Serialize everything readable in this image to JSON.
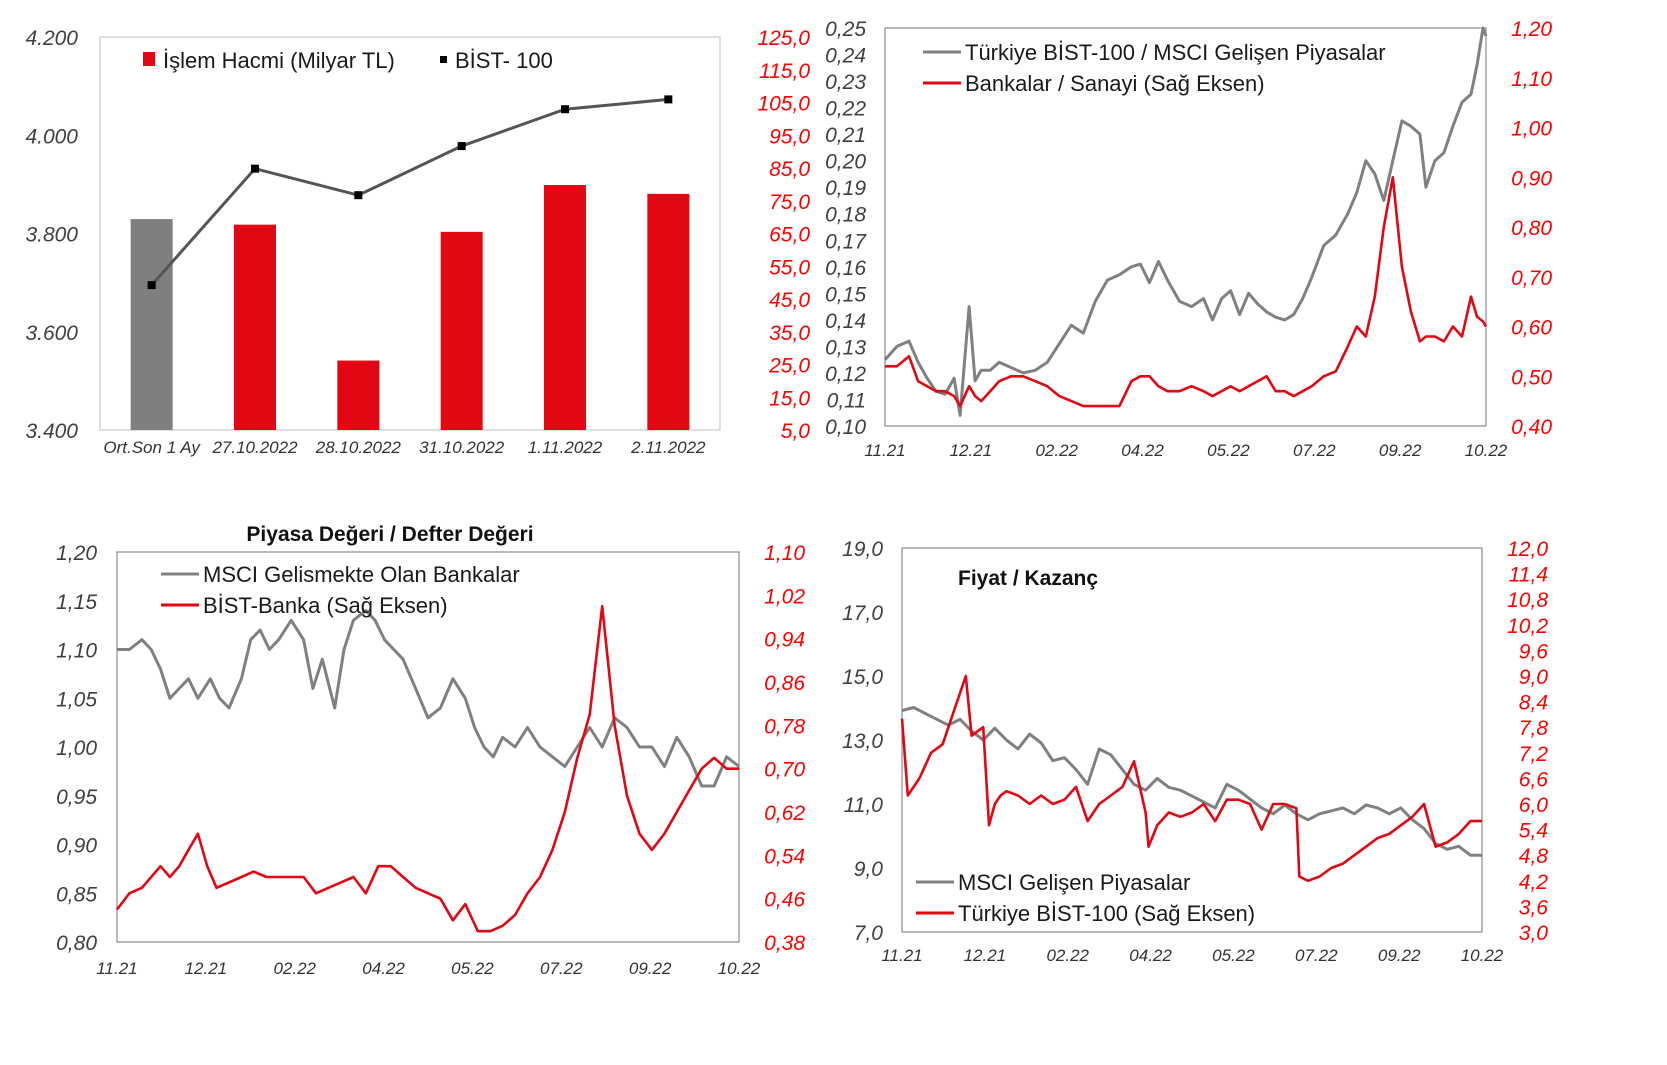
{
  "colors": {
    "red": "#e30613",
    "gray": "#6e6e6e",
    "bar_gray": "#7f7f7f",
    "black": "#111111",
    "tick_red": "#ff0000"
  },
  "chart_data": [
    {
      "id": "c1",
      "type": "bar",
      "title": "",
      "categories": [
        "Ort.Son 1 Ay",
        "27.10.2022",
        "28.10.2022",
        "31.10.2022",
        "1.11.2022",
        "2.11.2022"
      ],
      "y_left": {
        "ticks": [
          "4.200",
          "4.000",
          "3.800",
          "3.600",
          "3.400"
        ],
        "ylim": [
          3400,
          4200
        ]
      },
      "y_right": {
        "ticks": [
          "125,0",
          "115,0",
          "105,0",
          "95,0",
          "85,0",
          "75,0",
          "65,0",
          "55,0",
          "45,0",
          "35,0",
          "25,0",
          "15,0",
          "5,0"
        ],
        "ylim": [
          5,
          125
        ]
      },
      "series": [
        {
          "name": "İşlem Hacmi (Milyar TL)",
          "type": "bar",
          "axis": "right",
          "values": [
            69.4,
            67.7,
            26.2,
            65.5,
            79.8,
            77.1
          ],
          "colors": [
            "#7f7f7f",
            "#e30613",
            "#e30613",
            "#e30613",
            "#e30613",
            "#e30613"
          ]
        },
        {
          "name": "BİST- 100",
          "type": "line",
          "axis": "left",
          "values": [
            3695,
            3932,
            3878,
            3978,
            4053,
            4073
          ]
        }
      ],
      "legend": "top"
    },
    {
      "id": "c2",
      "type": "line",
      "title": "",
      "x_ticks": [
        "11.21",
        "12.21",
        "02.22",
        "04.22",
        "05.22",
        "07.22",
        "09.22",
        "10.22"
      ],
      "y_left": {
        "ticks": [
          "0,25",
          "0,24",
          "0,23",
          "0,22",
          "0,21",
          "0,20",
          "0,19",
          "0,18",
          "0,17",
          "0,16",
          "0,15",
          "0,14",
          "0,13",
          "0,12",
          "0,11",
          "0,10"
        ],
        "ylim": [
          0.1,
          0.25
        ]
      },
      "y_right": {
        "ticks": [
          "1,20",
          "1,10",
          "1,00",
          "0,90",
          "0,80",
          "0,70",
          "0,60",
          "0,50",
          "0,40"
        ],
        "ylim": [
          0.4,
          1.2
        ]
      },
      "series": [
        {
          "name": "Türkiye BİST-100 / MSCI Gelişen Piyasalar",
          "axis": "left",
          "color": "#808080",
          "x": [
            0,
            0.02,
            0.04,
            0.055,
            0.07,
            0.085,
            0.1,
            0.115,
            0.125,
            0.14,
            0.15,
            0.16,
            0.175,
            0.19,
            0.21,
            0.23,
            0.25,
            0.27,
            0.29,
            0.31,
            0.33,
            0.35,
            0.37,
            0.39,
            0.41,
            0.425,
            0.44,
            0.455,
            0.47,
            0.49,
            0.51,
            0.53,
            0.545,
            0.56,
            0.575,
            0.59,
            0.605,
            0.62,
            0.635,
            0.65,
            0.665,
            0.68,
            0.695,
            0.71,
            0.73,
            0.75,
            0.77,
            0.785,
            0.8,
            0.815,
            0.83,
            0.845,
            0.86,
            0.875,
            0.89,
            0.9,
            0.915,
            0.93,
            0.945,
            0.96,
            0.975,
            0.985,
            0.995,
            1.0
          ],
          "y": [
            0.125,
            0.13,
            0.132,
            0.124,
            0.118,
            0.113,
            0.112,
            0.118,
            0.104,
            0.145,
            0.117,
            0.121,
            0.121,
            0.124,
            0.122,
            0.12,
            0.121,
            0.124,
            0.131,
            0.138,
            0.135,
            0.147,
            0.155,
            0.157,
            0.16,
            0.161,
            0.154,
            0.162,
            0.155,
            0.147,
            0.145,
            0.148,
            0.14,
            0.148,
            0.151,
            0.142,
            0.15,
            0.146,
            0.143,
            0.141,
            0.14,
            0.142,
            0.148,
            0.156,
            0.168,
            0.172,
            0.18,
            0.188,
            0.2,
            0.195,
            0.185,
            0.2,
            0.215,
            0.213,
            0.21,
            0.19,
            0.2,
            0.203,
            0.213,
            0.222,
            0.225,
            0.236,
            0.255,
            0.247
          ]
        },
        {
          "name": "Bankalar / Sanayi (Sağ Eksen)",
          "axis": "right",
          "color": "#e30613",
          "x": [
            0,
            0.02,
            0.04,
            0.055,
            0.07,
            0.085,
            0.1,
            0.115,
            0.125,
            0.14,
            0.15,
            0.16,
            0.175,
            0.19,
            0.21,
            0.23,
            0.25,
            0.27,
            0.29,
            0.31,
            0.33,
            0.35,
            0.37,
            0.39,
            0.41,
            0.425,
            0.44,
            0.455,
            0.47,
            0.49,
            0.51,
            0.53,
            0.545,
            0.56,
            0.575,
            0.59,
            0.605,
            0.62,
            0.635,
            0.65,
            0.665,
            0.68,
            0.695,
            0.71,
            0.73,
            0.75,
            0.77,
            0.785,
            0.8,
            0.815,
            0.83,
            0.845,
            0.86,
            0.875,
            0.89,
            0.9,
            0.915,
            0.93,
            0.945,
            0.96,
            0.975,
            0.985,
            0.995,
            1.0
          ],
          "y": [
            0.52,
            0.52,
            0.54,
            0.49,
            0.48,
            0.47,
            0.47,
            0.46,
            0.44,
            0.48,
            0.46,
            0.45,
            0.47,
            0.49,
            0.5,
            0.5,
            0.49,
            0.48,
            0.46,
            0.45,
            0.44,
            0.44,
            0.44,
            0.44,
            0.49,
            0.5,
            0.5,
            0.48,
            0.47,
            0.47,
            0.48,
            0.47,
            0.46,
            0.47,
            0.48,
            0.47,
            0.48,
            0.49,
            0.5,
            0.47,
            0.47,
            0.46,
            0.47,
            0.48,
            0.5,
            0.51,
            0.56,
            0.6,
            0.58,
            0.66,
            0.8,
            0.9,
            0.72,
            0.63,
            0.57,
            0.58,
            0.58,
            0.57,
            0.6,
            0.58,
            0.66,
            0.62,
            0.61,
            0.6
          ]
        }
      ],
      "legend": "top-left"
    },
    {
      "id": "c3",
      "type": "line",
      "title": "Piyasa Değeri / Defter Değeri",
      "x_ticks": [
        "11.21",
        "12.21",
        "02.22",
        "04.22",
        "05.22",
        "07.22",
        "09.22",
        "10.22"
      ],
      "y_left": {
        "ticks": [
          "1,20",
          "1,15",
          "1,10",
          "1,05",
          "1,00",
          "0,95",
          "0,90",
          "0,85",
          "0,80"
        ],
        "ylim": [
          0.8,
          1.2
        ]
      },
      "y_right": {
        "ticks": [
          "1,10",
          "1,02",
          "0,94",
          "0,86",
          "0,78",
          "0,70",
          "0,62",
          "0,54",
          "0,46",
          "0,38"
        ],
        "ylim": [
          0.38,
          1.1
        ]
      },
      "series": [
        {
          "name": "MSCI Gelismekte Olan Bankalar",
          "axis": "left",
          "color": "#808080",
          "x": [
            0,
            0.02,
            0.04,
            0.055,
            0.07,
            0.085,
            0.1,
            0.115,
            0.13,
            0.15,
            0.165,
            0.18,
            0.2,
            0.215,
            0.23,
            0.245,
            0.26,
            0.28,
            0.3,
            0.315,
            0.33,
            0.35,
            0.365,
            0.38,
            0.4,
            0.415,
            0.43,
            0.445,
            0.46,
            0.48,
            0.5,
            0.52,
            0.54,
            0.56,
            0.575,
            0.59,
            0.605,
            0.62,
            0.64,
            0.66,
            0.68,
            0.7,
            0.72,
            0.74,
            0.76,
            0.78,
            0.8,
            0.82,
            0.84,
            0.86,
            0.88,
            0.9,
            0.92,
            0.94,
            0.96,
            0.98,
            1.0
          ],
          "y": [
            1.1,
            1.1,
            1.11,
            1.1,
            1.08,
            1.05,
            1.06,
            1.07,
            1.05,
            1.07,
            1.05,
            1.04,
            1.07,
            1.11,
            1.12,
            1.1,
            1.11,
            1.13,
            1.11,
            1.06,
            1.09,
            1.04,
            1.1,
            1.13,
            1.14,
            1.13,
            1.11,
            1.1,
            1.09,
            1.06,
            1.03,
            1.04,
            1.07,
            1.05,
            1.02,
            1.0,
            0.99,
            1.01,
            1.0,
            1.02,
            1.0,
            0.99,
            0.98,
            1.0,
            1.02,
            1.0,
            1.03,
            1.02,
            1.0,
            1.0,
            0.98,
            1.01,
            0.99,
            0.96,
            0.96,
            0.99,
            0.98
          ]
        },
        {
          "name": "BİST-Banka (Sağ Eksen)",
          "axis": "right",
          "color": "#e30613",
          "x": [
            0,
            0.02,
            0.04,
            0.055,
            0.07,
            0.085,
            0.1,
            0.115,
            0.13,
            0.145,
            0.16,
            0.18,
            0.2,
            0.22,
            0.24,
            0.26,
            0.28,
            0.3,
            0.32,
            0.34,
            0.36,
            0.38,
            0.4,
            0.42,
            0.44,
            0.46,
            0.48,
            0.5,
            0.52,
            0.54,
            0.56,
            0.58,
            0.6,
            0.62,
            0.64,
            0.66,
            0.68,
            0.7,
            0.72,
            0.74,
            0.76,
            0.78,
            0.8,
            0.82,
            0.84,
            0.86,
            0.88,
            0.9,
            0.92,
            0.94,
            0.96,
            0.98,
            1.0
          ],
          "y": [
            0.44,
            0.47,
            0.48,
            0.5,
            0.52,
            0.5,
            0.52,
            0.55,
            0.58,
            0.52,
            0.48,
            0.49,
            0.5,
            0.51,
            0.5,
            0.5,
            0.5,
            0.5,
            0.47,
            0.48,
            0.49,
            0.5,
            0.47,
            0.52,
            0.52,
            0.5,
            0.48,
            0.47,
            0.46,
            0.42,
            0.45,
            0.4,
            0.4,
            0.41,
            0.43,
            0.47,
            0.5,
            0.55,
            0.62,
            0.72,
            0.8,
            1.0,
            0.78,
            0.65,
            0.58,
            0.55,
            0.58,
            0.62,
            0.66,
            0.7,
            0.72,
            0.7,
            0.7
          ]
        }
      ],
      "legend": "top-left"
    },
    {
      "id": "c4",
      "type": "line",
      "title": "Fiyat / Kazanç",
      "x_ticks": [
        "11.21",
        "12.21",
        "02.22",
        "04.22",
        "05.22",
        "07.22",
        "09.22",
        "10.22"
      ],
      "y_left": {
        "ticks": [
          "19,0",
          "17,0",
          "15,0",
          "13,0",
          "11,0",
          "9,0",
          "7,0"
        ],
        "ylim": [
          7.0,
          20.0
        ]
      },
      "y_right": {
        "ticks": [
          "12,0",
          "11,4",
          "10,8",
          "10,2",
          "9,6",
          "9,0",
          "8,4",
          "7,8",
          "7,2",
          "6,6",
          "6,0",
          "5,4",
          "4,8",
          "4,2",
          "3,6",
          "3,0"
        ],
        "ylim": [
          3.0,
          12.0
        ]
      },
      "series": [
        {
          "name": "MSCI Gelişen Piyasalar",
          "axis": "left",
          "color": "#808080",
          "x": [
            0,
            0.02,
            0.04,
            0.06,
            0.08,
            0.1,
            0.12,
            0.14,
            0.16,
            0.18,
            0.2,
            0.22,
            0.24,
            0.26,
            0.28,
            0.3,
            0.32,
            0.34,
            0.36,
            0.38,
            0.4,
            0.42,
            0.44,
            0.46,
            0.48,
            0.5,
            0.52,
            0.54,
            0.56,
            0.58,
            0.6,
            0.62,
            0.64,
            0.66,
            0.68,
            0.7,
            0.72,
            0.74,
            0.76,
            0.78,
            0.8,
            0.82,
            0.84,
            0.86,
            0.88,
            0.9,
            0.92,
            0.94,
            0.96,
            0.98,
            1.0
          ],
          "y": [
            14.5,
            14.6,
            14.4,
            14.2,
            14.0,
            14.2,
            13.8,
            13.5,
            13.9,
            13.5,
            13.2,
            13.7,
            13.4,
            12.8,
            12.9,
            12.5,
            12.0,
            13.2,
            13.0,
            12.5,
            12.0,
            11.8,
            12.2,
            11.9,
            11.8,
            11.6,
            11.4,
            11.2,
            12.0,
            11.8,
            11.5,
            11.2,
            11.0,
            11.3,
            11.0,
            10.8,
            11.0,
            11.1,
            11.2,
            11.0,
            11.3,
            11.2,
            11.0,
            11.2,
            10.8,
            10.5,
            10.0,
            9.8,
            9.9,
            9.6,
            9.6
          ]
        },
        {
          "name": "Türkiye BİST-100 (Sağ Eksen)",
          "axis": "right",
          "color": "#e30613",
          "x": [
            0,
            0.01,
            0.03,
            0.05,
            0.07,
            0.09,
            0.11,
            0.12,
            0.14,
            0.15,
            0.16,
            0.17,
            0.18,
            0.2,
            0.22,
            0.24,
            0.26,
            0.28,
            0.3,
            0.32,
            0.34,
            0.36,
            0.38,
            0.4,
            0.42,
            0.425,
            0.44,
            0.46,
            0.48,
            0.5,
            0.52,
            0.54,
            0.56,
            0.58,
            0.6,
            0.62,
            0.64,
            0.66,
            0.68,
            0.685,
            0.7,
            0.72,
            0.74,
            0.76,
            0.78,
            0.8,
            0.82,
            0.84,
            0.86,
            0.88,
            0.9,
            0.92,
            0.94,
            0.96,
            0.98,
            1.0
          ],
          "y": [
            8.0,
            6.2,
            6.6,
            7.2,
            7.4,
            8.2,
            9.0,
            7.6,
            7.8,
            5.5,
            6.0,
            6.2,
            6.3,
            6.2,
            6.0,
            6.2,
            6.0,
            6.1,
            6.4,
            5.6,
            6.0,
            6.2,
            6.4,
            7.0,
            5.8,
            5.0,
            5.5,
            5.8,
            5.7,
            5.8,
            6.0,
            5.6,
            6.1,
            6.1,
            6.0,
            5.4,
            6.0,
            6.0,
            5.9,
            4.3,
            4.2,
            4.3,
            4.5,
            4.6,
            4.8,
            5.0,
            5.2,
            5.3,
            5.5,
            5.7,
            6.0,
            5.0,
            5.1,
            5.3,
            5.6,
            5.6
          ]
        }
      ],
      "legend": "bottom-left"
    }
  ]
}
